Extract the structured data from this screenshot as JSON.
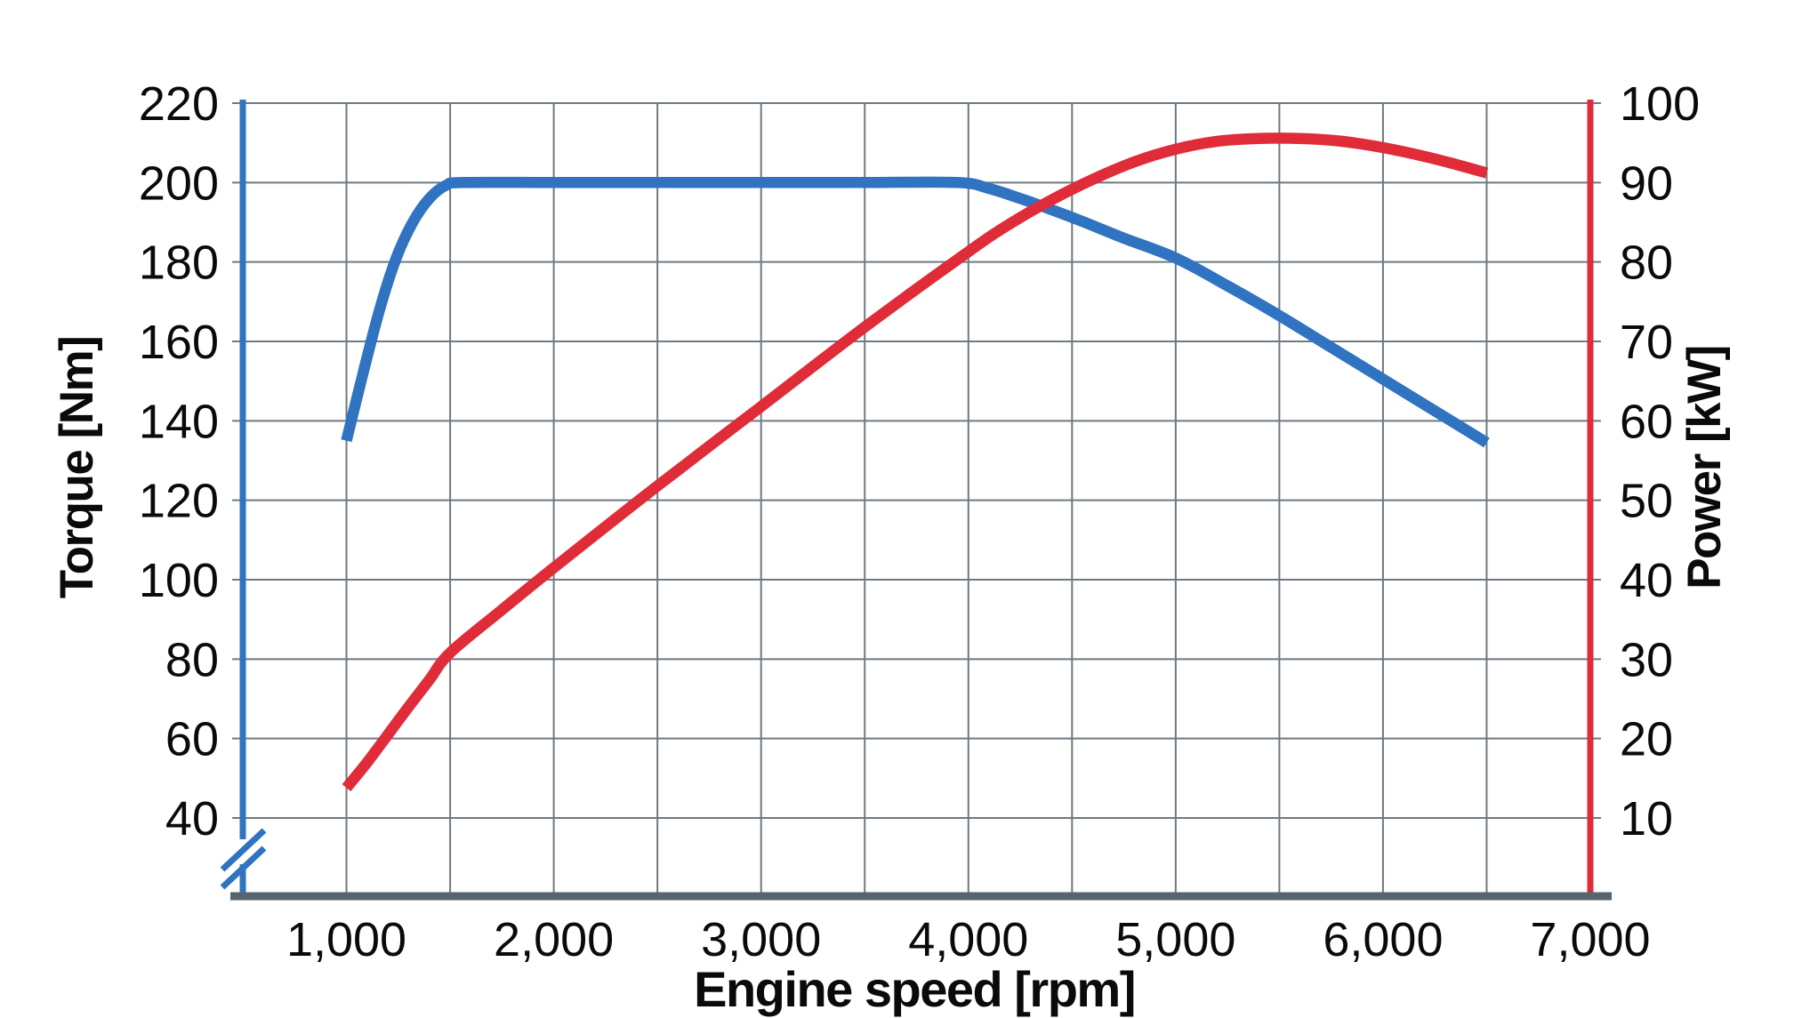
{
  "chart_data": {
    "type": "line",
    "title": "",
    "xlabel": "Engine speed [rpm]",
    "ylabel_left": "Torque [Nm]",
    "ylabel_right": "Power [kW]",
    "xlim": [
      500,
      7000
    ],
    "x_minor_step": 500,
    "x_ticks": [
      {
        "value": 1000,
        "label": "1,000"
      },
      {
        "value": 2000,
        "label": "2,000"
      },
      {
        "value": 3000,
        "label": "3,000"
      },
      {
        "value": 4000,
        "label": "4,000"
      },
      {
        "value": 5000,
        "label": "5,000"
      },
      {
        "value": 6000,
        "label": "6,000"
      },
      {
        "value": 7000,
        "label": "7,000"
      }
    ],
    "left_axis": {
      "label": "Torque [Nm]",
      "unit": "Nm",
      "min": 40,
      "max": 220,
      "tick_step": 20,
      "ticks": [
        220,
        200,
        180,
        160,
        140,
        120,
        100,
        80,
        60,
        40
      ],
      "color": "#3074c1",
      "axis_break": true
    },
    "right_axis": {
      "label": "Power [kW]",
      "unit": "kW",
      "min": 10,
      "max": 100,
      "tick_step": 10,
      "ticks": [
        100,
        90,
        80,
        70,
        60,
        50,
        40,
        30,
        20,
        10
      ],
      "color": "#e02b38"
    },
    "grid": {
      "on": true,
      "color": "#6e7983"
    },
    "legend": {
      "visible": false
    },
    "series": [
      {
        "name": "Torque",
        "axis": "left",
        "unit": "Nm",
        "color": "#3074c1",
        "points": [
          [
            1000,
            135
          ],
          [
            1080,
            152
          ],
          [
            1160,
            168
          ],
          [
            1240,
            181
          ],
          [
            1320,
            190
          ],
          [
            1400,
            196
          ],
          [
            1480,
            199.3
          ],
          [
            1560,
            200
          ],
          [
            2000,
            200
          ],
          [
            2500,
            200
          ],
          [
            3000,
            200
          ],
          [
            3500,
            200
          ],
          [
            3950,
            200
          ],
          [
            4100,
            198.5
          ],
          [
            4250,
            196
          ],
          [
            4400,
            193.2
          ],
          [
            4550,
            190.2
          ],
          [
            4750,
            186
          ],
          [
            5000,
            181
          ],
          [
            5250,
            174
          ],
          [
            5500,
            166.5
          ],
          [
            5750,
            158.5
          ],
          [
            6000,
            150.5
          ],
          [
            6250,
            142.5
          ],
          [
            6500,
            134.5
          ]
        ]
      },
      {
        "name": "Power",
        "axis": "right",
        "unit": "kW",
        "color": "#e02b38",
        "points": [
          [
            1000,
            13.8
          ],
          [
            1100,
            17
          ],
          [
            1200,
            20.5
          ],
          [
            1300,
            24
          ],
          [
            1400,
            27.4
          ],
          [
            1500,
            30.8
          ],
          [
            1750,
            36.2
          ],
          [
            2000,
            41.5
          ],
          [
            2500,
            51.8
          ],
          [
            3000,
            61.8
          ],
          [
            3500,
            71.8
          ],
          [
            4000,
            81.3
          ],
          [
            4200,
            84.8
          ],
          [
            4400,
            87.8
          ],
          [
            4600,
            90.4
          ],
          [
            4800,
            92.6
          ],
          [
            5000,
            94.2
          ],
          [
            5200,
            95.2
          ],
          [
            5400,
            95.55
          ],
          [
            5600,
            95.55
          ],
          [
            5800,
            95.2
          ],
          [
            6000,
            94.4
          ],
          [
            6200,
            93.3
          ],
          [
            6350,
            92.3
          ],
          [
            6500,
            91.2
          ]
        ]
      }
    ]
  },
  "colors": {
    "background": "#ffffff",
    "x_axis_line": "#57636e",
    "grid_line": "#6e7983",
    "text": "#0a0a0a",
    "torque_blue": "#3074c1",
    "power_red": "#e02b38"
  }
}
